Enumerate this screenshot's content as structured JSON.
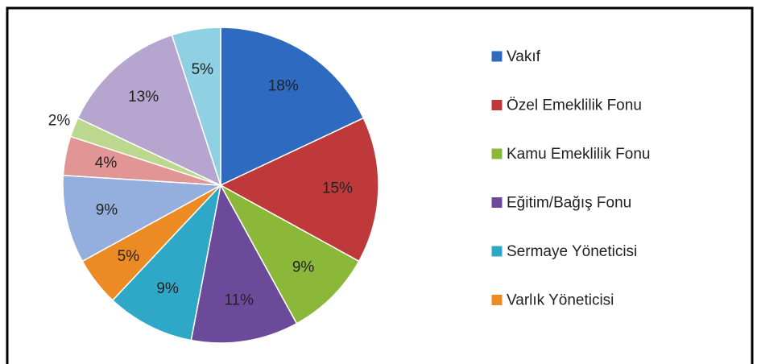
{
  "chart_data": {
    "type": "pie",
    "categories": [
      "Vakıf",
      "Özel Emeklilik Fonu",
      "Kamu Emeklilik Fonu",
      "Eğitim/Bağış Fonu",
      "Sermaye Yöneticisi",
      "Varlık Yöneticisi",
      null,
      null,
      null,
      null,
      null
    ],
    "values": [
      18,
      15,
      9,
      11,
      9,
      5,
      9,
      4,
      2,
      13,
      5
    ],
    "value_labels": [
      "18%",
      "15%",
      "9%",
      "11%",
      "9%",
      "5%",
      "9%",
      "4%",
      "2%",
      "13%",
      "5%"
    ],
    "colors": [
      "#2e6bc0",
      "#c0393a",
      "#8cb83a",
      "#6c4a9a",
      "#2fa7c6",
      "#ec8a24",
      "#94aedd",
      "#e19595",
      "#bcd88f",
      "#b5a5cf",
      "#8fd0e3"
    ],
    "legend": "right"
  }
}
